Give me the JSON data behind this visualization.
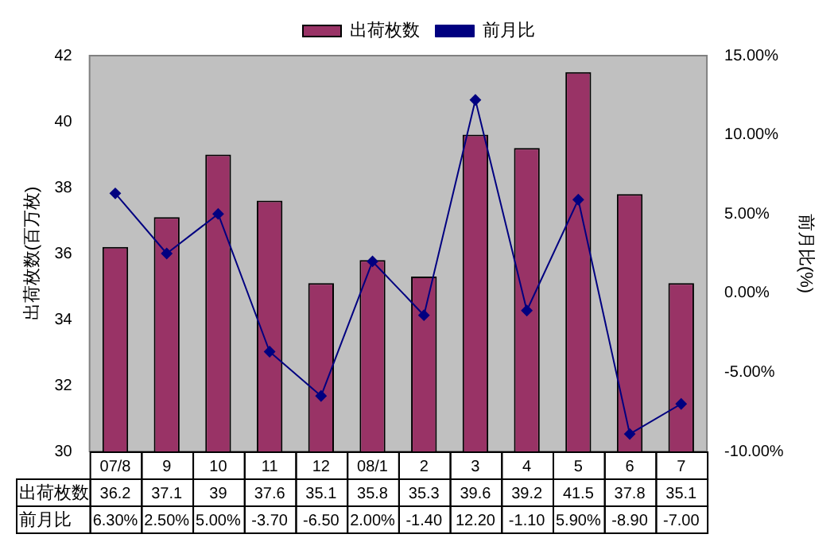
{
  "chart_data": {
    "type": "bar",
    "categories": [
      "07/8",
      "9",
      "10",
      "11",
      "12",
      "08/1",
      "2",
      "3",
      "4",
      "5",
      "6",
      "7"
    ],
    "ylabel": "出荷枚数(百万枚)",
    "y2label": "前月比(%)",
    "series": [
      {
        "name": "出荷枚数",
        "color": "#993366",
        "values": [
          36.2,
          37.1,
          39,
          37.6,
          35.1,
          35.8,
          35.3,
          39.6,
          39.2,
          41.5,
          37.8,
          35.1
        ],
        "value_labels": [
          "36.2",
          "37.1",
          "39",
          "37.6",
          "35.1",
          "35.8",
          "35.3",
          "39.6",
          "39.2",
          "41.5",
          "37.8",
          "35.1"
        ]
      },
      {
        "name": "前月比",
        "type": "line",
        "axis": "y2",
        "color": "#000080",
        "marker": "diamond",
        "values": [
          6.3,
          2.5,
          5.0,
          -3.7,
          -6.5,
          2.0,
          -1.4,
          12.2,
          -1.1,
          5.9,
          -8.9,
          -7.0
        ],
        "value_labels": [
          "6.30%",
          "2.50%",
          "5.00%",
          "-3.70",
          "-6.50",
          "2.00%",
          "-1.40",
          "12.20",
          "-1.10",
          "5.90%",
          "-8.90",
          "-7.00"
        ]
      }
    ],
    "ylim": [
      30,
      42
    ],
    "yticks": [
      30,
      32,
      34,
      36,
      38,
      40,
      42
    ],
    "y2lim": [
      -10,
      15
    ],
    "y2ticks": [
      {
        "value": -10,
        "label": "-10.00%"
      },
      {
        "value": -5,
        "label": "-5.00%"
      },
      {
        "value": 0,
        "label": "0.00%"
      },
      {
        "value": 5,
        "label": "5.00%"
      },
      {
        "value": 10,
        "label": "10.00%"
      },
      {
        "value": 15,
        "label": "15.00%"
      }
    ],
    "legend": "top",
    "grid": false
  }
}
